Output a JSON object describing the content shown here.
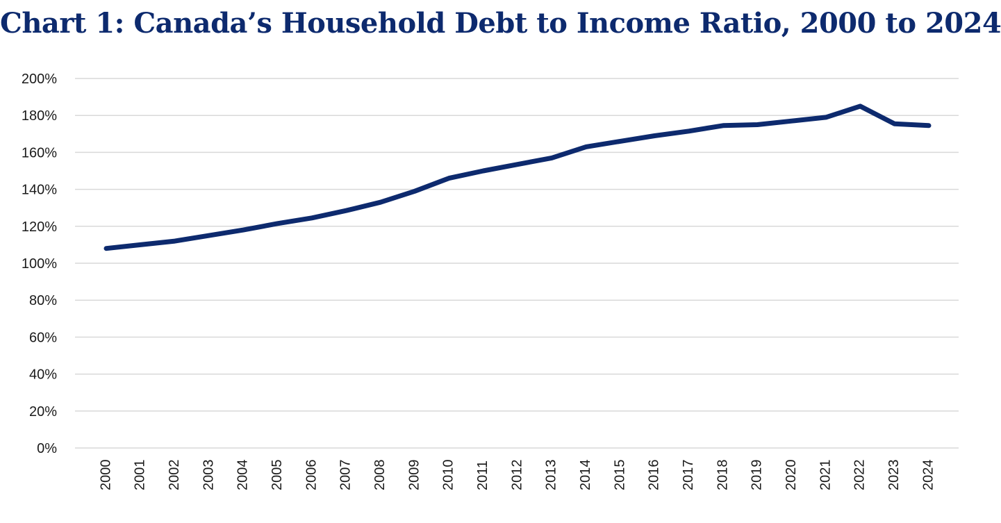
{
  "chart_data": {
    "type": "line",
    "title": "Chart 1: Canada’s Household Debt to Income Ratio, 2000 to 2024",
    "xlabel": "",
    "ylabel": "",
    "categories": [
      "2000",
      "2001",
      "2002",
      "2003",
      "2004",
      "2005",
      "2006",
      "2007",
      "2008",
      "2009",
      "2010",
      "2011",
      "2012",
      "2013",
      "2014",
      "2015",
      "2016",
      "2017",
      "2018",
      "2019",
      "2020",
      "2021",
      "2022",
      "2023",
      "2024"
    ],
    "series": [
      {
        "values": [
          108,
          110,
          112,
          115,
          118,
          121.5,
          124.5,
          128.5,
          133,
          139,
          146,
          150,
          153.5,
          157,
          163,
          166,
          169,
          171.5,
          174.5,
          175,
          177,
          179,
          185,
          175.5,
          174.5
        ],
        "color": "#0d2a6e"
      }
    ],
    "ylim": [
      0,
      200
    ],
    "y_ticks": [
      0,
      20,
      40,
      60,
      80,
      100,
      120,
      140,
      160,
      180,
      200
    ],
    "y_tick_labels": [
      "0%",
      "20%",
      "40%",
      "60%",
      "80%",
      "100%",
      "120%",
      "140%",
      "160%",
      "180%",
      "200%"
    ],
    "grid": true,
    "legend": "none"
  }
}
